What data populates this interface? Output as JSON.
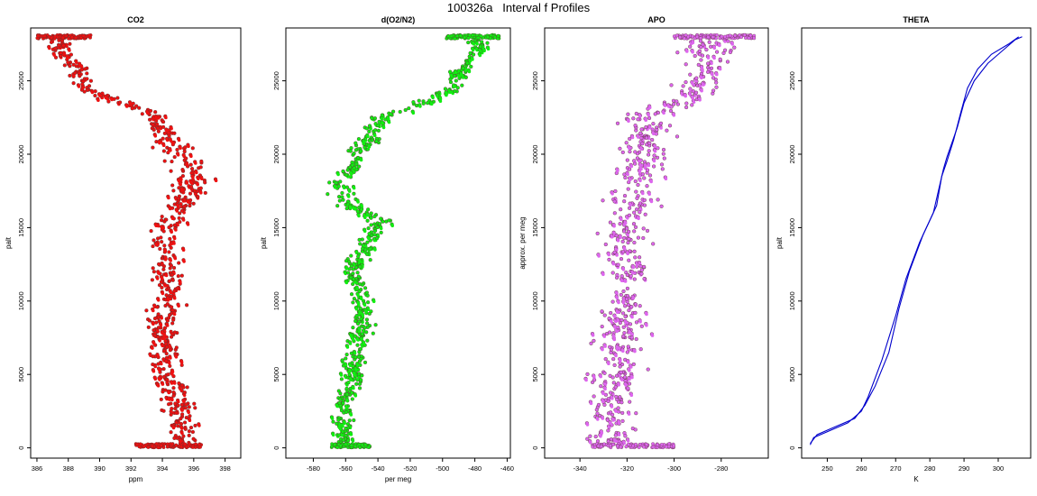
{
  "figure": {
    "title": "100326a   Interval f Profiles"
  },
  "chart_data": [
    {
      "type": "scatter",
      "title": "CO2",
      "xlabel": "ppm",
      "ylabel": "palt",
      "xlim": [
        385.6,
        399.0
      ],
      "ylim": [
        -700,
        28600
      ],
      "xticks": [
        386,
        388,
        390,
        392,
        394,
        396,
        398
      ],
      "yticks": [
        0,
        5000,
        10000,
        15000,
        20000,
        25000
      ],
      "color": "#ee1111",
      "profile": [
        [
          0,
          395.2,
          0.6
        ],
        [
          1500,
          395.3,
          0.6
        ],
        [
          3000,
          395.0,
          0.6
        ],
        [
          5000,
          394.3,
          0.6
        ],
        [
          7000,
          393.9,
          0.6
        ],
        [
          9000,
          394.0,
          0.6
        ],
        [
          11000,
          394.6,
          0.6
        ],
        [
          13000,
          394.3,
          0.6
        ],
        [
          15000,
          394.4,
          0.6
        ],
        [
          17000,
          395.5,
          0.6
        ],
        [
          18500,
          396.0,
          0.7
        ],
        [
          19800,
          395.4,
          0.6
        ],
        [
          21000,
          394.3,
          0.5
        ],
        [
          23000,
          393.2,
          0.4
        ],
        [
          23600,
          391.0,
          0.5
        ],
        [
          24500,
          389.2,
          0.4
        ],
        [
          26000,
          388.5,
          0.5
        ],
        [
          27300,
          387.3,
          0.4
        ],
        [
          28000,
          387.5,
          0.9
        ]
      ],
      "clusters": [
        {
          "y": 150,
          "x_range": [
            392.3,
            396.5
          ]
        },
        {
          "y": 28000,
          "x_range": [
            386.0,
            389.5
          ]
        }
      ]
    },
    {
      "type": "scatter",
      "title": "d(O2/N2)",
      "xlabel": "per meg",
      "ylabel": "palt",
      "xlim": [
        -597,
        -458
      ],
      "ylim": [
        -700,
        28600
      ],
      "xticks": [
        -580,
        -560,
        -540,
        -520,
        -500,
        -480,
        -460
      ],
      "yticks": [
        0,
        5000,
        10000,
        15000,
        20000,
        25000
      ],
      "color": "#11ee11",
      "profile": [
        [
          0,
          -561,
          4
        ],
        [
          2000,
          -563,
          4
        ],
        [
          4000,
          -557,
          4
        ],
        [
          6000,
          -554,
          4
        ],
        [
          8000,
          -551,
          4
        ],
        [
          10000,
          -549,
          4
        ],
        [
          12000,
          -556,
          4
        ],
        [
          14000,
          -545,
          4
        ],
        [
          15500,
          -539,
          4
        ],
        [
          16500,
          -555,
          5
        ],
        [
          17500,
          -565,
          5
        ],
        [
          18500,
          -558,
          4
        ],
        [
          19800,
          -554,
          4
        ],
        [
          21000,
          -545,
          4
        ],
        [
          22500,
          -538,
          4
        ],
        [
          23500,
          -510,
          5
        ],
        [
          24500,
          -492,
          3
        ],
        [
          26000,
          -488,
          3
        ],
        [
          27000,
          -478,
          3
        ],
        [
          28000,
          -480,
          4
        ]
      ],
      "clusters": [
        {
          "y": 150,
          "x_range": [
            -569,
            -545
          ]
        },
        {
          "y": 28000,
          "x_range": [
            -498,
            -465
          ]
        }
      ]
    },
    {
      "type": "scatter",
      "title": "APO",
      "xlabel": "",
      "ylabel": "approx. per meg",
      "xlim": [
        -355,
        -260
      ],
      "ylim": [
        -700,
        28600
      ],
      "xticks": [
        -340,
        -320,
        -300,
        -280
      ],
      "yticks": [
        0,
        5000,
        10000,
        15000,
        20000,
        25000
      ],
      "color": "#dd66ee",
      "profile": [
        [
          0,
          -326,
          6
        ],
        [
          2500,
          -327,
          6
        ],
        [
          5000,
          -324,
          6
        ],
        [
          7500,
          -322,
          6
        ],
        [
          10000,
          -320,
          6
        ],
        [
          12500,
          -321,
          6
        ],
        [
          15000,
          -320,
          6
        ],
        [
          17500,
          -317,
          6
        ],
        [
          20000,
          -313,
          6
        ],
        [
          22500,
          -312,
          6
        ],
        [
          24000,
          -293,
          5
        ],
        [
          26000,
          -285,
          5
        ],
        [
          28000,
          -285,
          9
        ]
      ],
      "clusters": [
        {
          "y": 150,
          "x_range": [
            -335,
            -300
          ]
        },
        {
          "y": 28000,
          "x_range": [
            -301,
            -266
          ]
        }
      ]
    },
    {
      "type": "line",
      "title": "THETA",
      "xlabel": "K",
      "ylabel": "palt",
      "xlim": [
        242.5,
        309.5
      ],
      "ylim": [
        -700,
        28600
      ],
      "xticks": [
        250,
        260,
        270,
        280,
        290,
        300
      ],
      "yticks": [
        0,
        5000,
        10000,
        15000,
        20000,
        25000
      ],
      "color": "#0000cc",
      "series": [
        {
          "points": [
            [
              245,
              200
            ],
            [
              246,
              700
            ],
            [
              250,
              1100
            ],
            [
              256,
              1700
            ],
            [
              260,
              2500
            ],
            [
              262,
              3500
            ],
            [
              266,
              6000
            ],
            [
              270,
              9000
            ],
            [
              273,
              11500
            ],
            [
              277,
              14000
            ],
            [
              281,
              16000
            ],
            [
              284,
              19000
            ],
            [
              285,
              19800
            ],
            [
              288,
              21800
            ],
            [
              290,
              23500
            ],
            [
              293,
              25000
            ],
            [
              297,
              26200
            ],
            [
              301,
              27000
            ],
            [
              305,
              27800
            ],
            [
              307,
              28000
            ]
          ]
        },
        {
          "points": [
            [
              245,
              300
            ],
            [
              247,
              900
            ],
            [
              252,
              1400
            ],
            [
              258,
              2000
            ],
            [
              261,
              2900
            ],
            [
              264,
              4200
            ],
            [
              268,
              6500
            ],
            [
              271,
              9500
            ],
            [
              274,
              12000
            ],
            [
              278,
              14500
            ],
            [
              282,
              16500
            ],
            [
              283.5,
              18500
            ],
            [
              285,
              19500
            ],
            [
              287,
              21000
            ],
            [
              289,
              22800
            ],
            [
              291,
              24500
            ],
            [
              294,
              25800
            ],
            [
              298,
              26800
            ],
            [
              303,
              27500
            ],
            [
              306,
              28000
            ]
          ]
        }
      ]
    }
  ]
}
